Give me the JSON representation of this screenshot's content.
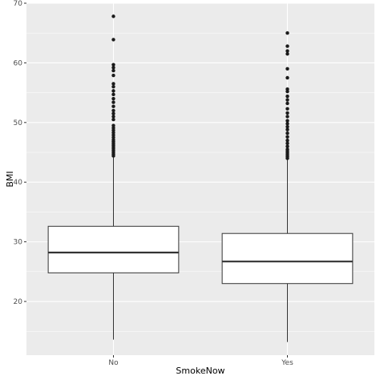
{
  "chart_data": {
    "type": "boxplot",
    "xlabel": "SmokeNow",
    "ylabel": "BMI",
    "categories": [
      "No",
      "Yes"
    ],
    "ylim": [
      11,
      70
    ],
    "yticks": [
      20,
      30,
      40,
      50,
      60,
      70
    ],
    "boxes": [
      {
        "category": "No",
        "whisker_low": 13.6,
        "q1": 24.8,
        "median": 28.2,
        "q3": 32.6,
        "whisker_high": 44.2,
        "outliers": [
          44.4,
          44.7,
          45.0,
          45.3,
          45.6,
          45.9,
          46.2,
          46.5,
          46.8,
          47.1,
          47.5,
          47.9,
          48.3,
          48.7,
          49.1,
          49.5,
          50.5,
          51.0,
          51.5,
          52.0,
          52.7,
          53.4,
          54.0,
          54.7,
          55.3,
          56.0,
          56.5,
          57.9,
          58.7,
          59.2,
          59.7,
          63.9,
          67.8
        ]
      },
      {
        "category": "Yes",
        "whisker_low": 13.2,
        "q1": 23.0,
        "median": 26.7,
        "q3": 31.4,
        "whisker_high": 43.8,
        "outliers": [
          44.0,
          44.3,
          44.6,
          44.9,
          45.2,
          45.5,
          46.0,
          46.5,
          47.0,
          47.6,
          48.2,
          48.8,
          49.3,
          49.8,
          50.3,
          51.0,
          51.6,
          52.3,
          53.2,
          53.8,
          54.4,
          55.2,
          55.6,
          57.5,
          59.0,
          61.5,
          62.0,
          62.8,
          65.0
        ]
      }
    ],
    "grid": true,
    "legend": "none"
  },
  "colors": {
    "panel": "#ebebeb",
    "grid_major": "#ffffff",
    "box_fill": "#ffffff",
    "stroke": "#333333",
    "point": "#1a1a1a"
  }
}
